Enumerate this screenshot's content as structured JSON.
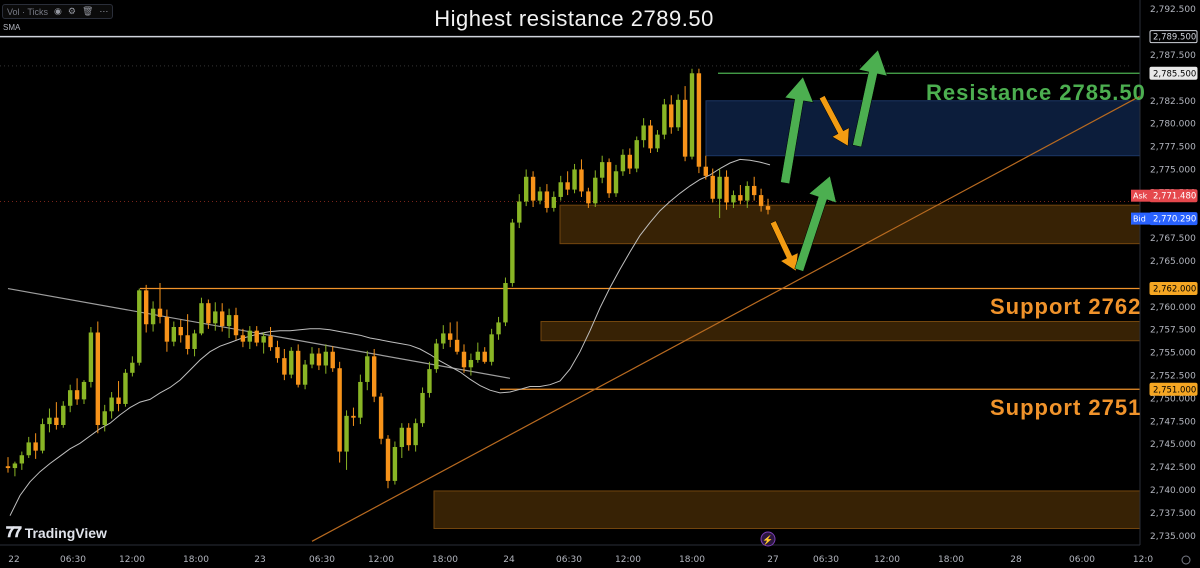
{
  "indicator_bar": {
    "label": "Vol · Ticks",
    "icons": [
      "eye-icon",
      "settings-icon",
      "trash-icon",
      "more-icon"
    ]
  },
  "sma_label": "SMA",
  "headline": "Highest resistance  2789.50",
  "labels": {
    "resistance": "Resistance  2785.50",
    "support_2762": "Support  2762",
    "support_2751": "Support  2751"
  },
  "logo_text": "TradingView",
  "colors": {
    "background": "#000000",
    "candle_up": "#89b525",
    "candle_down": "#f7931a",
    "resistance_text": "#4caf50",
    "support_text": "#f0932b",
    "zone_blue": "#0d1f3f",
    "zone_orange": "#3a2406",
    "arrow_green": "#4caf50",
    "arrow_orange": "#f39c12"
  },
  "chart_data": {
    "type": "candlestick",
    "title": "Highest resistance  2789.50",
    "ylim": [
      2734.0,
      2793.5
    ],
    "y_ticks": [
      2792.5,
      2787.5,
      2782.5,
      2780.0,
      2777.5,
      2775.0,
      2772.5,
      2767.5,
      2765.0,
      2760.0,
      2757.5,
      2755.0,
      2752.5,
      2750.0,
      2747.5,
      2745.0,
      2742.5,
      2740.0,
      2737.5,
      2735.0
    ],
    "y_tick_labels": [
      "2,792.500",
      "2,787.500",
      "2,782.500",
      "2,780.000",
      "2,777.500",
      "2,775.000",
      "2,772.500",
      "2,767.500",
      "2,765.000",
      "2,760.000",
      "2,757.500",
      "2,755.000",
      "2,752.500",
      "2,750.000",
      "2,747.500",
      "2,745.000",
      "2,742.500",
      "2,740.000",
      "2,737.500",
      "2,735.000"
    ],
    "x_tick_labels": [
      "22",
      "06:30",
      "12:00",
      "18:00",
      "23",
      "06:30",
      "12:00",
      "18:00",
      "24",
      "06:30",
      "12:00",
      "18:00",
      "27",
      "06:30",
      "12:00",
      "18:00",
      "28",
      "06:00",
      "12:0"
    ],
    "price_markers": [
      {
        "label": "2,789.500",
        "value": 2789.5,
        "style": "white-outline"
      },
      {
        "label": "2,785.500",
        "value": 2785.5,
        "style": "white"
      },
      {
        "label": "2,771.480",
        "value": 2771.48,
        "style": "ask",
        "tag": "Ask"
      },
      {
        "label": "2,770.290",
        "value": 2770.29,
        "style": "bid",
        "tag": "Bid"
      },
      {
        "label": "2,762.000",
        "value": 2762.0,
        "style": "orange"
      },
      {
        "label": "2,751.000",
        "value": 2751.0,
        "style": "orange"
      }
    ],
    "horizontal_levels": [
      {
        "value": 2789.5,
        "color": "#d1d4dc",
        "name": "Highest resistance"
      },
      {
        "value": 2785.5,
        "color": "#4caf50",
        "name": "Resistance"
      },
      {
        "value": 2762.0,
        "color": "#f0932b",
        "name": "Support 2762"
      },
      {
        "value": 2751.0,
        "color": "#f0932b",
        "name": "Support 2751"
      }
    ],
    "zones": [
      {
        "y_low": 2776.5,
        "y_high": 2782.5,
        "color": "blue"
      },
      {
        "y_low": 2766.9,
        "y_high": 2771.1,
        "color": "orange"
      },
      {
        "y_low": 2756.3,
        "y_high": 2758.4,
        "color": "orange"
      },
      {
        "y_low": 2735.8,
        "y_high": 2739.9,
        "color": "orange"
      }
    ],
    "candles_ohlc": [
      [
        2742.6,
        2743.6,
        2741.9,
        2742.4
      ],
      [
        2742.4,
        2743.1,
        2741.5,
        2742.9
      ],
      [
        2742.9,
        2744.2,
        2742.2,
        2743.8
      ],
      [
        2743.8,
        2745.8,
        2743.5,
        2745.2
      ],
      [
        2745.2,
        2746.2,
        2743.4,
        2744.3
      ],
      [
        2744.3,
        2747.8,
        2744.0,
        2747.2
      ],
      [
        2747.2,
        2748.9,
        2746.3,
        2747.9
      ],
      [
        2747.9,
        2749.6,
        2746.6,
        2747.1
      ],
      [
        2747.1,
        2749.7,
        2746.8,
        2749.2
      ],
      [
        2749.2,
        2751.5,
        2748.5,
        2750.9
      ],
      [
        2750.9,
        2752.2,
        2749.3,
        2749.9
      ],
      [
        2749.9,
        2752.0,
        2749.4,
        2751.8
      ],
      [
        2751.8,
        2757.8,
        2751.2,
        2757.2
      ],
      [
        2757.2,
        2758.4,
        2746.2,
        2747.1
      ],
      [
        2747.1,
        2749.3,
        2746.4,
        2748.6
      ],
      [
        2748.6,
        2750.7,
        2747.8,
        2750.1
      ],
      [
        2750.1,
        2751.9,
        2748.6,
        2749.4
      ],
      [
        2749.4,
        2753.2,
        2749.1,
        2752.8
      ],
      [
        2752.8,
        2754.6,
        2752.4,
        2753.9
      ],
      [
        2753.9,
        2762.0,
        2753.6,
        2761.8
      ],
      [
        2761.8,
        2762.4,
        2757.2,
        2758.1
      ],
      [
        2758.1,
        2760.6,
        2757.3,
        2759.8
      ],
      [
        2759.8,
        2762.6,
        2758.2,
        2758.9
      ],
      [
        2758.9,
        2759.7,
        2755.1,
        2756.2
      ],
      [
        2756.2,
        2758.4,
        2755.7,
        2757.8
      ],
      [
        2757.8,
        2758.6,
        2756.1,
        2756.9
      ],
      [
        2756.9,
        2759.2,
        2754.8,
        2755.4
      ],
      [
        2755.4,
        2757.5,
        2754.6,
        2757.1
      ],
      [
        2757.1,
        2761.0,
        2756.9,
        2760.4
      ],
      [
        2760.4,
        2760.8,
        2757.6,
        2758.2
      ],
      [
        2758.2,
        2760.5,
        2757.4,
        2759.5
      ],
      [
        2759.5,
        2760.4,
        2757.3,
        2757.9
      ],
      [
        2757.9,
        2759.8,
        2756.6,
        2759.1
      ],
      [
        2759.1,
        2759.9,
        2756.4,
        2756.9
      ],
      [
        2756.9,
        2757.6,
        2755.6,
        2756.2
      ],
      [
        2756.2,
        2757.9,
        2755.4,
        2757.4
      ],
      [
        2757.4,
        2757.9,
        2755.7,
        2756.1
      ],
      [
        2756.1,
        2757.2,
        2754.9,
        2756.8
      ],
      [
        2756.8,
        2757.8,
        2755.2,
        2755.6
      ],
      [
        2755.6,
        2756.3,
        2753.9,
        2754.4
      ],
      [
        2754.4,
        2755.4,
        2752.0,
        2752.6
      ],
      [
        2752.6,
        2755.6,
        2752.2,
        2755.2
      ],
      [
        2755.2,
        2755.9,
        2751.2,
        2751.5
      ],
      [
        2751.5,
        2754.2,
        2751.0,
        2753.7
      ],
      [
        2753.7,
        2755.6,
        2753.3,
        2754.9
      ],
      [
        2754.9,
        2755.5,
        2753.1,
        2753.6
      ],
      [
        2753.6,
        2755.9,
        2752.7,
        2755.1
      ],
      [
        2755.1,
        2755.7,
        2752.9,
        2753.3
      ],
      [
        2753.3,
        2754.0,
        2743.0,
        2744.2
      ],
      [
        2744.2,
        2748.7,
        2742.2,
        2748.1
      ],
      [
        2748.1,
        2749.0,
        2747.0,
        2747.9
      ],
      [
        2747.9,
        2752.6,
        2747.2,
        2751.8
      ],
      [
        2751.8,
        2755.2,
        2750.9,
        2754.6
      ],
      [
        2754.6,
        2755.4,
        2749.6,
        2750.2
      ],
      [
        2750.2,
        2750.6,
        2745.0,
        2745.6
      ],
      [
        2745.6,
        2746.0,
        2740.2,
        2741.0
      ],
      [
        2741.0,
        2745.3,
        2740.6,
        2744.7
      ],
      [
        2744.7,
        2747.3,
        2743.5,
        2746.8
      ],
      [
        2746.8,
        2747.3,
        2744.3,
        2744.9
      ],
      [
        2744.9,
        2747.8,
        2744.2,
        2747.3
      ],
      [
        2747.3,
        2751.2,
        2746.9,
        2750.6
      ],
      [
        2750.6,
        2754.0,
        2750.1,
        2753.2
      ],
      [
        2753.2,
        2756.5,
        2752.8,
        2756.0
      ],
      [
        2756.0,
        2758.0,
        2755.4,
        2757.1
      ],
      [
        2757.1,
        2758.3,
        2755.6,
        2756.4
      ],
      [
        2756.4,
        2758.4,
        2754.8,
        2755.1
      ],
      [
        2755.1,
        2755.9,
        2752.8,
        2753.4
      ],
      [
        2753.4,
        2754.9,
        2752.5,
        2754.2
      ],
      [
        2754.2,
        2756.1,
        2753.9,
        2755.1
      ],
      [
        2755.1,
        2755.6,
        2753.8,
        2754.0
      ],
      [
        2754.0,
        2757.6,
        2753.6,
        2757.0
      ],
      [
        2757.0,
        2758.9,
        2756.4,
        2758.3
      ],
      [
        2758.3,
        2763.2,
        2757.9,
        2762.6
      ],
      [
        2762.6,
        2769.6,
        2762.2,
        2769.2
      ],
      [
        2769.2,
        2772.3,
        2768.6,
        2771.5
      ],
      [
        2771.5,
        2775.0,
        2771.0,
        2774.2
      ],
      [
        2774.2,
        2774.8,
        2770.9,
        2771.6
      ],
      [
        2771.6,
        2773.1,
        2771.2,
        2772.6
      ],
      [
        2772.6,
        2773.4,
        2770.3,
        2770.8
      ],
      [
        2770.8,
        2772.6,
        2770.4,
        2772.0
      ],
      [
        2772.0,
        2774.3,
        2771.6,
        2773.6
      ],
      [
        2773.6,
        2774.8,
        2772.2,
        2772.8
      ],
      [
        2772.8,
        2775.6,
        2772.4,
        2775.0
      ],
      [
        2775.0,
        2776.1,
        2772.0,
        2772.6
      ],
      [
        2772.6,
        2773.0,
        2770.8,
        2771.3
      ],
      [
        2771.3,
        2774.9,
        2770.9,
        2774.1
      ],
      [
        2774.1,
        2776.5,
        2773.5,
        2775.8
      ],
      [
        2775.8,
        2776.2,
        2771.9,
        2772.4
      ],
      [
        2772.4,
        2775.5,
        2772.0,
        2774.8
      ],
      [
        2774.8,
        2777.2,
        2774.3,
        2776.6
      ],
      [
        2776.6,
        2777.3,
        2774.5,
        2775.1
      ],
      [
        2775.1,
        2778.6,
        2774.7,
        2778.2
      ],
      [
        2778.2,
        2780.6,
        2777.4,
        2779.8
      ],
      [
        2779.8,
        2780.4,
        2776.8,
        2777.3
      ],
      [
        2777.3,
        2779.3,
        2776.9,
        2778.8
      ],
      [
        2778.8,
        2782.7,
        2778.3,
        2782.1
      ],
      [
        2782.1,
        2783.1,
        2778.9,
        2779.6
      ],
      [
        2779.6,
        2783.2,
        2779.2,
        2782.6
      ],
      [
        2782.6,
        2784.1,
        2775.9,
        2776.4
      ],
      [
        2776.4,
        2786.0,
        2776.1,
        2785.5
      ],
      [
        2785.5,
        2786.0,
        2774.6,
        2775.3
      ],
      [
        2775.3,
        2776.5,
        2773.9,
        2774.3
      ],
      [
        2774.3,
        2775.1,
        2771.4,
        2771.8
      ],
      [
        2771.8,
        2775.1,
        2769.7,
        2774.2
      ],
      [
        2774.2,
        2774.9,
        2770.6,
        2771.4
      ],
      [
        2771.4,
        2772.7,
        2770.8,
        2772.2
      ],
      [
        2772.2,
        2773.3,
        2771.2,
        2771.6
      ],
      [
        2771.6,
        2773.7,
        2770.8,
        2773.2
      ],
      [
        2773.2,
        2774.2,
        2771.6,
        2772.2
      ],
      [
        2772.2,
        2772.9,
        2770.4,
        2771.0
      ],
      [
        2771.0,
        2771.8,
        2770.1,
        2770.6
      ]
    ],
    "sma": [
      2737.2,
      2739.4,
      2740.9,
      2742.0,
      2742.9,
      2743.7,
      2744.5,
      2745.1,
      2745.9,
      2746.7,
      2747.3,
      2748.2,
      2749.0,
      2749.6,
      2749.9,
      2750.6,
      2751.2,
      2752.0,
      2753.1,
      2754.2,
      2755.1,
      2755.7,
      2756.1,
      2756.5,
      2756.8,
      2757.1,
      2757.3,
      2757.4,
      2757.4,
      2757.5,
      2757.6,
      2757.6,
      2757.5,
      2757.3,
      2757.1,
      2756.9,
      2756.6,
      2756.4,
      2756.2,
      2756.0,
      2755.8,
      2755.4,
      2754.8,
      2754.1,
      2753.5,
      2752.9,
      2752.1,
      2751.4,
      2750.9,
      2750.6,
      2750.7,
      2751.0,
      2751.3,
      2751.3,
      2751.5,
      2751.9,
      2753.2,
      2755.1,
      2757.4,
      2759.9,
      2762.1,
      2764.1,
      2766.0,
      2767.8,
      2769.2,
      2770.5,
      2771.5,
      2772.4,
      2773.2,
      2773.9,
      2774.4,
      2775.1,
      2775.7,
      2776.1,
      2776.0,
      2775.8,
      2775.5
    ],
    "trendlines": [
      {
        "from": [
          0,
          2762.0
        ],
        "to": [
          21,
          2752.2
        ],
        "color": "#9e9e9e",
        "note": "descending"
      },
      {
        "from": [
          15,
          2735.0
        ],
        "to": [
          55,
          2782.2
        ],
        "color": "#b86a20",
        "note": "ascending"
      }
    ]
  }
}
